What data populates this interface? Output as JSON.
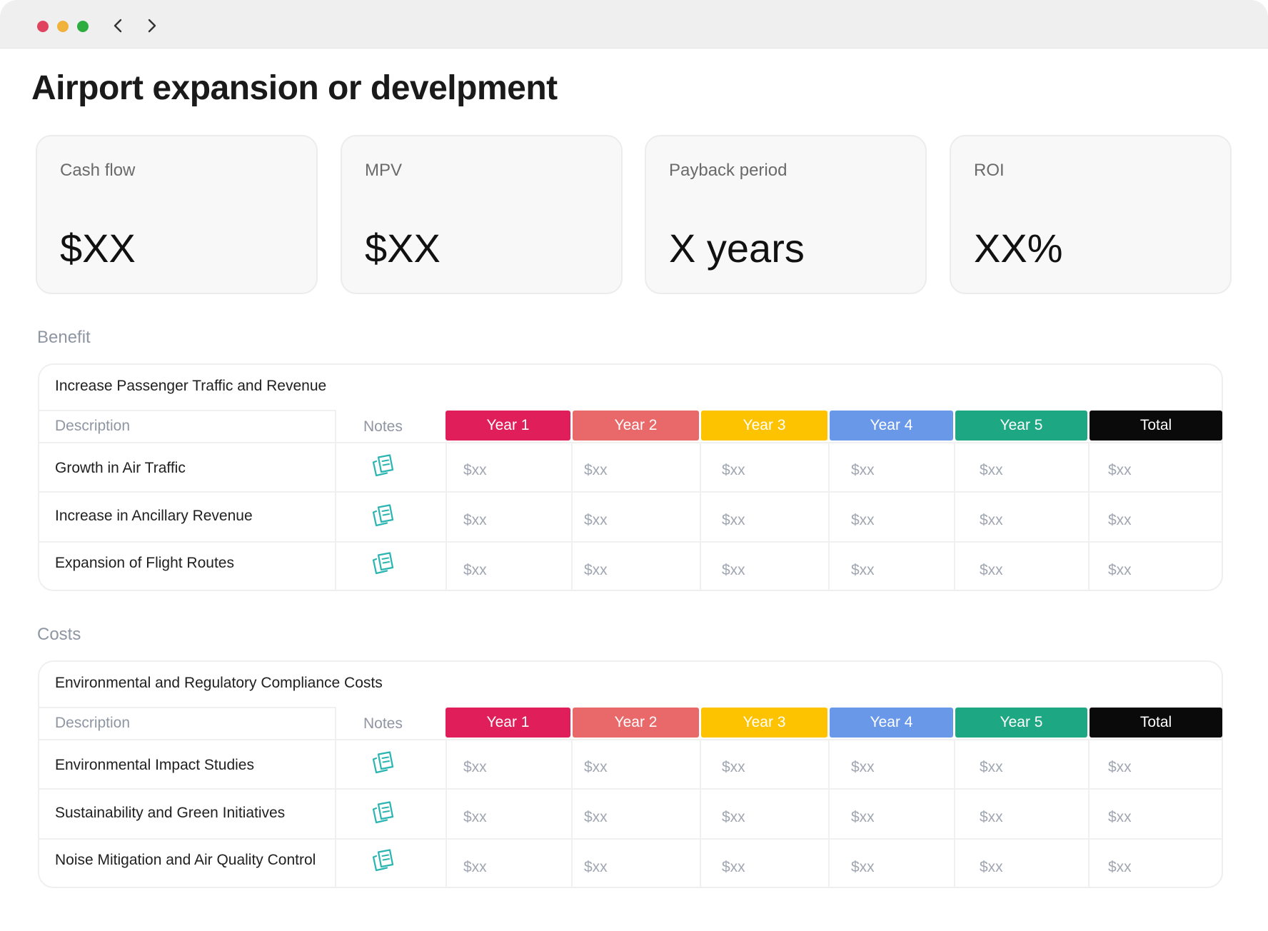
{
  "window": {
    "controls": [
      {
        "name": "close",
        "color": "#e0435e"
      },
      {
        "name": "minimize",
        "color": "#f1b23c"
      },
      {
        "name": "maximize",
        "color": "#2dac3f"
      }
    ]
  },
  "page": {
    "title": "Airport expansion or develpment"
  },
  "kpis": [
    {
      "label": "Cash flow",
      "value": "$XX"
    },
    {
      "label": "MPV",
      "value": "$XX"
    },
    {
      "label": "Payback period",
      "value": "X years"
    },
    {
      "label": "ROI",
      "value": "XX%"
    }
  ],
  "columns": {
    "description": "Description",
    "notes": "Notes",
    "years": [
      {
        "label": "Year 1",
        "color": "#e01e5a"
      },
      {
        "label": "Year 2",
        "color": "#e9686a"
      },
      {
        "label": "Year 3",
        "color": "#fec300"
      },
      {
        "label": "Year 4",
        "color": "#6a98e8"
      },
      {
        "label": "Year 5",
        "color": "#1ea783"
      },
      {
        "label": "Total",
        "color": "#0a0a0a"
      }
    ]
  },
  "accent_color": "#2bb5b0",
  "sections": [
    {
      "label": "Benefit",
      "table_title": "Increase Passenger Traffic and Revenue",
      "rows": [
        {
          "label": "Growth in Air Traffic",
          "values": [
            "$xx",
            "$xx",
            "$xx",
            "$xx",
            "$xx",
            "$xx"
          ]
        },
        {
          "label": "Increase in Ancillary Revenue",
          "values": [
            "$xx",
            "$xx",
            "$xx",
            "$xx",
            "$xx",
            "$xx"
          ]
        },
        {
          "label": "Expansion of Flight Routes",
          "values": [
            "$xx",
            "$xx",
            "$xx",
            "$xx",
            "$xx",
            "$xx"
          ]
        }
      ]
    },
    {
      "label": "Costs",
      "table_title": "Environmental and Regulatory Compliance Costs",
      "rows": [
        {
          "label": "Environmental Impact Studies",
          "values": [
            "$xx",
            "$xx",
            "$xx",
            "$xx",
            "$xx",
            "$xx"
          ]
        },
        {
          "label": "Sustainability and Green Initiatives",
          "values": [
            "$xx",
            "$xx",
            "$xx",
            "$xx",
            "$xx",
            "$xx"
          ]
        },
        {
          "label": "Noise Mitigation and Air Quality Control",
          "values": [
            "$xx",
            "$xx",
            "$xx",
            "$xx",
            "$xx",
            "$xx"
          ]
        }
      ]
    }
  ]
}
